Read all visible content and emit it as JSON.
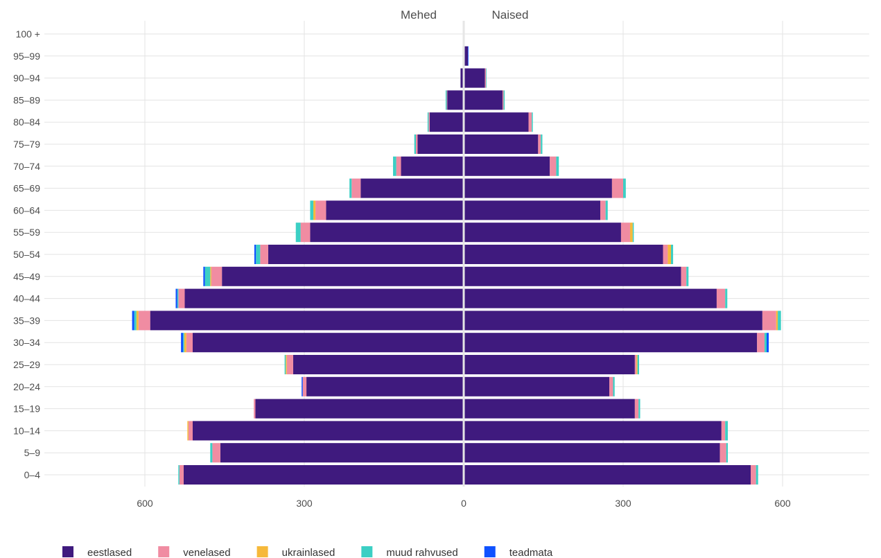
{
  "chart_data": {
    "type": "bar",
    "orientation": "horizontal",
    "stacked": true,
    "diverging": true,
    "title": "",
    "xlabel": "",
    "ylabel": "",
    "side_labels": {
      "left": "Mehed",
      "right": "Naised"
    },
    "categories": [
      "0–4",
      "5–9",
      "10–14",
      "15–19",
      "20–24",
      "25–29",
      "30–34",
      "35–39",
      "40–44",
      "45–49",
      "50–54",
      "55–59",
      "60–64",
      "65–69",
      "70–74",
      "75–79",
      "80–84",
      "85–89",
      "90–94",
      "95–99",
      "100 +"
    ],
    "xlim": [
      -800,
      800
    ],
    "xticks": [
      -600,
      -300,
      0,
      300,
      600
    ],
    "xtick_labels": [
      "600",
      "300",
      "0",
      "300",
      "600"
    ],
    "grid": true,
    "legend_position": "bottom",
    "series": [
      {
        "name": "eestlased",
        "color": "#3f1a7e",
        "male": [
          527,
          458,
          510,
          392,
          296,
          321,
          510,
          590,
          525,
          455,
          368,
          289,
          259,
          194,
          118,
          87,
          64,
          31,
          6,
          2,
          0
        ],
        "female": [
          540,
          482,
          485,
          322,
          274,
          322,
          552,
          562,
          476,
          409,
          375,
          296,
          257,
          279,
          162,
          140,
          122,
          73,
          40,
          8,
          1
        ]
      },
      {
        "name": "venelased",
        "color": "#f08ca2",
        "male": [
          8,
          15,
          8,
          3,
          7,
          12,
          12,
          22,
          12,
          20,
          15,
          18,
          20,
          17,
          9,
          3,
          2,
          1,
          0,
          0,
          0
        ],
        "female": [
          10,
          12,
          7,
          7,
          7,
          3,
          14,
          26,
          16,
          10,
          9,
          17,
          10,
          21,
          12,
          5,
          6,
          2,
          2,
          0,
          0
        ]
      },
      {
        "name": "ukrainlased",
        "color": "#f6b93b",
        "male": [
          0,
          0,
          2,
          0,
          0,
          2,
          4,
          4,
          0,
          2,
          0,
          0,
          4,
          0,
          0,
          0,
          0,
          0,
          0,
          0,
          0
        ],
        "female": [
          0,
          0,
          0,
          0,
          0,
          2,
          0,
          3,
          0,
          0,
          6,
          5,
          0,
          0,
          0,
          0,
          0,
          0,
          0,
          0,
          0
        ]
      },
      {
        "name": "muud rahvused",
        "color": "#3ccfc4",
        "male": [
          2,
          4,
          0,
          0,
          0,
          2,
          2,
          4,
          2,
          10,
          8,
          9,
          6,
          4,
          6,
          3,
          2,
          2,
          0,
          0,
          0
        ],
        "female": [
          4,
          3,
          5,
          3,
          3,
          3,
          4,
          6,
          4,
          4,
          4,
          2,
          4,
          5,
          5,
          3,
          2,
          2,
          1,
          0,
          0
        ]
      },
      {
        "name": "teadmata",
        "color": "#0f52ff",
        "male": [
          0,
          0,
          0,
          0,
          2,
          0,
          4,
          4,
          3,
          3,
          3,
          0,
          0,
          0,
          0,
          0,
          0,
          0,
          0,
          0,
          0
        ],
        "female": [
          0,
          0,
          0,
          0,
          0,
          0,
          4,
          0,
          0,
          0,
          0,
          0,
          0,
          0,
          0,
          0,
          0,
          0,
          0,
          1,
          0
        ]
      }
    ]
  }
}
